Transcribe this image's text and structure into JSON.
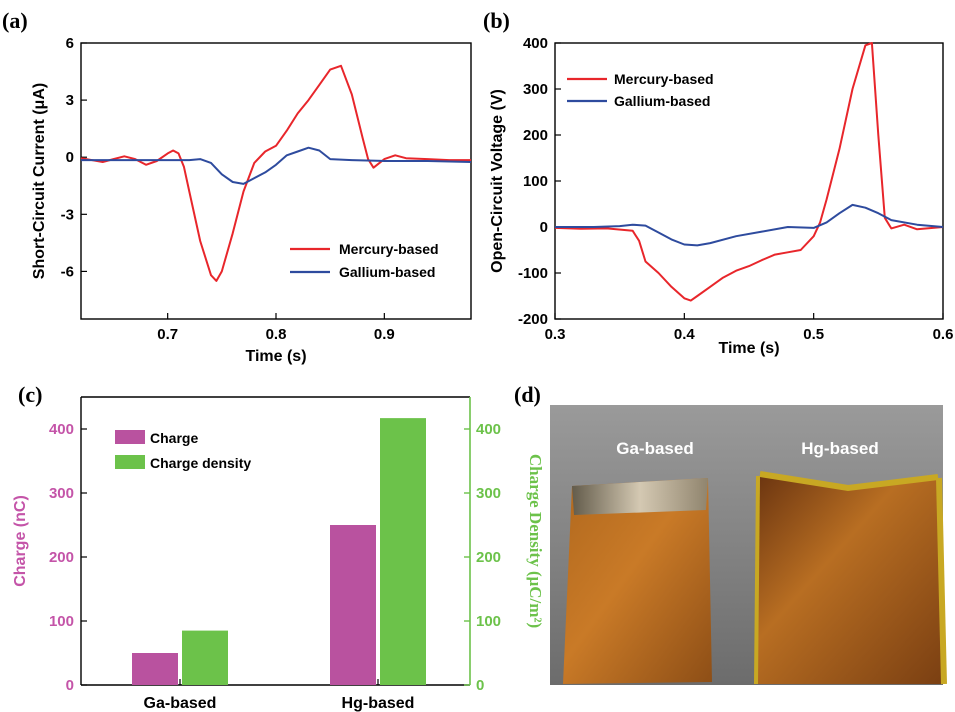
{
  "chart_data": [
    {
      "panel": "(a)",
      "type": "line",
      "xlabel": "Time (s)",
      "ylabel": "Short-Circuit Current (μA)",
      "xlim": [
        0.62,
        0.98
      ],
      "ylim": [
        -8.5,
        6
      ],
      "xticks": [
        0.7,
        0.8,
        0.9
      ],
      "xtick_labels": [
        "0.7",
        "0.8",
        "0.9"
      ],
      "yticks": [
        -6,
        -3,
        0,
        3,
        6
      ],
      "ytick_labels": [
        "-6",
        "-3",
        "0",
        "3",
        "6"
      ],
      "legend_position": "lower-right",
      "series": [
        {
          "name": "Mercury-based",
          "color": "#e8262b",
          "x": [
            0.62,
            0.64,
            0.65,
            0.66,
            0.67,
            0.68,
            0.69,
            0.7,
            0.705,
            0.71,
            0.715,
            0.72,
            0.73,
            0.74,
            0.745,
            0.75,
            0.76,
            0.77,
            0.78,
            0.79,
            0.8,
            0.81,
            0.82,
            0.83,
            0.84,
            0.85,
            0.86,
            0.87,
            0.88,
            0.885,
            0.89,
            0.9,
            0.91,
            0.92,
            0.94,
            0.96,
            0.98
          ],
          "y": [
            -0.05,
            -0.25,
            -0.1,
            0.05,
            -0.1,
            -0.4,
            -0.2,
            0.2,
            0.35,
            0.2,
            -0.5,
            -1.8,
            -4.4,
            -6.2,
            -6.5,
            -6.0,
            -4.0,
            -1.8,
            -0.3,
            0.3,
            0.6,
            1.4,
            2.3,
            3.0,
            3.8,
            4.6,
            4.8,
            3.3,
            1.0,
            -0.1,
            -0.55,
            -0.1,
            0.1,
            -0.05,
            -0.1,
            -0.15,
            -0.15
          ]
        },
        {
          "name": "Gallium-based",
          "color": "#2e4b9e",
          "x": [
            0.62,
            0.7,
            0.72,
            0.73,
            0.74,
            0.75,
            0.76,
            0.77,
            0.78,
            0.79,
            0.8,
            0.81,
            0.82,
            0.83,
            0.84,
            0.85,
            0.87,
            0.9,
            0.94,
            0.98
          ],
          "y": [
            -0.15,
            -0.15,
            -0.15,
            -0.1,
            -0.3,
            -0.9,
            -1.3,
            -1.4,
            -1.1,
            -0.8,
            -0.4,
            0.1,
            0.3,
            0.5,
            0.35,
            -0.1,
            -0.15,
            -0.2,
            -0.2,
            -0.25
          ]
        }
      ]
    },
    {
      "panel": "(b)",
      "type": "line",
      "xlabel": "Time (s)",
      "ylabel": "Open-Circuit Voltage (V)",
      "xlim": [
        0.3,
        0.6
      ],
      "ylim": [
        -200,
        400
      ],
      "xticks": [
        0.3,
        0.4,
        0.5,
        0.6
      ],
      "xtick_labels": [
        "0.3",
        "0.4",
        "0.5",
        "0.6"
      ],
      "yticks": [
        -200,
        -100,
        0,
        100,
        200,
        300,
        400
      ],
      "ytick_labels": [
        "-200",
        "-100",
        "0",
        "100",
        "200",
        "300",
        "400"
      ],
      "legend_position": "top-left",
      "series": [
        {
          "name": "Mercury-based",
          "color": "#e8262b",
          "x": [
            0.3,
            0.32,
            0.34,
            0.36,
            0.365,
            0.37,
            0.38,
            0.39,
            0.4,
            0.405,
            0.41,
            0.42,
            0.43,
            0.44,
            0.45,
            0.46,
            0.47,
            0.48,
            0.49,
            0.5,
            0.505,
            0.51,
            0.52,
            0.53,
            0.54,
            0.545,
            0.55,
            0.555,
            0.56,
            0.57,
            0.58,
            0.6
          ],
          "y": [
            -2,
            -4,
            -3,
            -8,
            -30,
            -75,
            -100,
            -130,
            -155,
            -160,
            -150,
            -130,
            -110,
            -95,
            -85,
            -72,
            -60,
            -55,
            -50,
            -20,
            10,
            60,
            170,
            300,
            395,
            400,
            200,
            20,
            -3,
            5,
            -5,
            0
          ]
        },
        {
          "name": "Gallium-based",
          "color": "#2e4b9e",
          "x": [
            0.3,
            0.33,
            0.35,
            0.36,
            0.37,
            0.38,
            0.39,
            0.4,
            0.41,
            0.42,
            0.44,
            0.46,
            0.48,
            0.5,
            0.51,
            0.52,
            0.53,
            0.54,
            0.55,
            0.56,
            0.58,
            0.6
          ],
          "y": [
            0,
            0,
            2,
            5,
            3,
            -12,
            -27,
            -38,
            -40,
            -35,
            -20,
            -10,
            0,
            -2,
            10,
            30,
            48,
            42,
            30,
            15,
            5,
            0
          ]
        }
      ]
    },
    {
      "panel": "(c)",
      "type": "bar",
      "categories": [
        "Ga-based",
        "Hg-based"
      ],
      "ylabel_left": "Charge (nC)",
      "ylabel_right": "Charge Density (μC/m²)",
      "ylim_left": [
        0,
        450
      ],
      "ylim_right": [
        0,
        450
      ],
      "yticks_left": [
        0,
        100,
        200,
        300,
        400
      ],
      "ytick_labels_left": [
        "0",
        "100",
        "200",
        "300",
        "400"
      ],
      "yticks_right": [
        0,
        100,
        200,
        300,
        400
      ],
      "ytick_labels_right": [
        "0",
        "100",
        "200",
        "300",
        "400"
      ],
      "left_axis_color": "#c454a8",
      "right_axis_color": "#6cc24a",
      "legend_position": "top-left",
      "series": [
        {
          "name": "Charge",
          "color": "#b9529f",
          "axis": "left",
          "values": [
            50,
            250
          ]
        },
        {
          "name": "Charge density",
          "color": "#6cc24a",
          "axis": "right",
          "values": [
            85,
            417
          ]
        }
      ]
    }
  ],
  "photo": {
    "panel": "(d)",
    "left_label": "Ga-based",
    "right_label": "Hg-based"
  }
}
